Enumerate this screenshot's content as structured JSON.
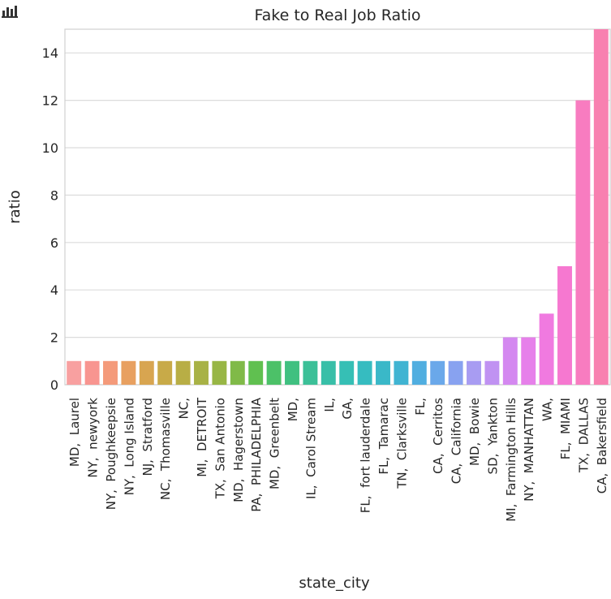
{
  "toolbar": {
    "icon": "bar-chart-icon"
  },
  "chart_data": {
    "type": "bar",
    "title": "Fake to Real Job Ratio",
    "xlabel": "state_city",
    "ylabel": "ratio",
    "ylim": [
      0,
      15.0
    ],
    "yticks": [
      0,
      2,
      4,
      6,
      8,
      10,
      12,
      14
    ],
    "grid": true,
    "categories": [
      "MD,  Laurel",
      "NY,  newyork",
      "NY,  Poughkeepsie",
      "NY,  Long Island",
      "NJ,  Stratford",
      "NC,  Thomasville",
      "NC,",
      "MI,  DETROIT",
      "TX,  San Antonio",
      "MD,  Hagerstown",
      "PA,  PHILADELPHIA",
      "MD,  Greenbelt",
      "MD,",
      "IL,  Carol Stream",
      "IL,",
      "GA,",
      "FL,  fort lauderdale",
      "FL,  Tamarac",
      "TN,  Clarksville",
      "FL,",
      "CA,  Cerritos",
      "CA,  California",
      "MD,  Bowie",
      "SD,  Yankton",
      "MI,  Farmington Hills",
      "NY,  MANHATTAN",
      "WA,",
      "FL,  MIAMI",
      "TX,  DALLAS",
      "CA,  Bakersfield"
    ],
    "values": [
      1,
      1,
      1,
      1,
      1,
      1,
      1,
      1,
      1,
      1,
      1,
      1,
      1,
      1,
      1,
      1,
      1,
      1,
      1,
      1,
      1,
      1,
      1,
      1,
      2,
      2,
      3,
      5,
      12,
      15
    ],
    "colors": [
      "#f8a0a0",
      "#f89590",
      "#f49a7a",
      "#e8a060",
      "#d8a550",
      "#c8aa48",
      "#b8ae45",
      "#a8b245",
      "#98b645",
      "#80ba48",
      "#60c050",
      "#4cc168",
      "#40c080",
      "#3cc098",
      "#38bfa8",
      "#36bfb5",
      "#36bcc0",
      "#3ab8c8",
      "#40b4d2",
      "#50aee0",
      "#6aa8ea",
      "#88a2f0",
      "#a89cf2",
      "#c092f2",
      "#d488f0",
      "#e680ea",
      "#f07ae0",
      "#f678d0",
      "#f87cc0",
      "#f880b0"
    ]
  }
}
